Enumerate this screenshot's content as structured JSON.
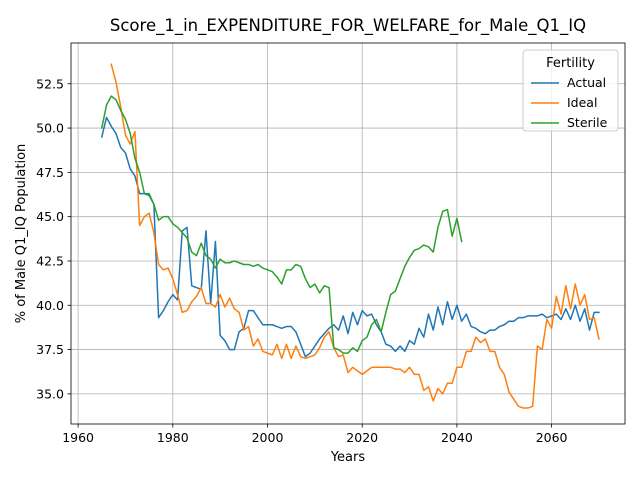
{
  "chart_data": {
    "type": "line",
    "title": "Score_1_in_EXPENDITURE_FOR_WELFARE_for_Male_Q1_IQ",
    "xlabel": "Years",
    "ylabel": "% of Male Q1_IQ Population",
    "xlim": [
      1958.5,
      2075.5
    ],
    "ylim": [
      33.3,
      54.8
    ],
    "xticks": [
      1960,
      1980,
      2000,
      2020,
      2040,
      2060
    ],
    "xtick_labels": [
      "1960",
      "1980",
      "2000",
      "2020",
      "2040",
      "2060"
    ],
    "yticks": [
      35.0,
      37.5,
      40.0,
      42.5,
      45.0,
      47.5,
      50.0,
      52.5
    ],
    "ytick_labels": [
      "35.0",
      "37.5",
      "40.0",
      "42.5",
      "45.0",
      "47.5",
      "50.0",
      "52.5"
    ],
    "grid": true,
    "legend": {
      "title": "Fertility",
      "position": "top-right"
    },
    "series": [
      {
        "name": "Actual",
        "color": "#1f77b4",
        "x": [
          1965,
          1966,
          1967,
          1968,
          1969,
          1970,
          1971,
          1972,
          1973,
          1974,
          1975,
          1976,
          1977,
          1978,
          1979,
          1980,
          1981,
          1982,
          1983,
          1984,
          1985,
          1986,
          1987,
          1988,
          1989,
          1990,
          1991,
          1992,
          1993,
          1994,
          1995,
          1996,
          1997,
          1998,
          1999,
          2000,
          2001,
          2002,
          2003,
          2004,
          2005,
          2006,
          2007,
          2008,
          2009,
          2010,
          2011,
          2012,
          2013,
          2014,
          2015,
          2016,
          2017,
          2018,
          2019,
          2020,
          2021,
          2022,
          2023,
          2024,
          2025,
          2026,
          2027,
          2028,
          2029,
          2030,
          2031,
          2032,
          2033,
          2034,
          2035,
          2036,
          2037,
          2038,
          2039,
          2040,
          2041,
          2042,
          2043,
          2044,
          2045,
          2046,
          2047,
          2048,
          2049,
          2050,
          2051,
          2052,
          2053,
          2054,
          2055,
          2056,
          2057,
          2058,
          2059,
          2060,
          2061,
          2062,
          2063,
          2064,
          2065,
          2066,
          2067,
          2068,
          2069,
          2070
        ],
        "values": [
          49.5,
          50.6,
          50.1,
          49.7,
          48.9,
          48.6,
          47.7,
          47.3,
          46.3,
          46.3,
          46.2,
          45.7,
          39.3,
          39.7,
          40.2,
          40.6,
          40.3,
          44.2,
          44.4,
          41.1,
          41.0,
          40.9,
          44.2,
          40.1,
          43.6,
          38.3,
          38.0,
          37.5,
          37.5,
          38.5,
          38.7,
          39.7,
          39.7,
          39.3,
          38.9,
          38.9,
          38.9,
          38.8,
          38.7,
          38.8,
          38.8,
          38.5,
          37.8,
          37.1,
          37.3,
          37.7,
          38.1,
          38.4,
          38.7,
          38.9,
          38.6,
          39.4,
          38.4,
          39.6,
          38.9,
          39.7,
          39.4,
          39.5,
          38.9,
          38.5,
          37.8,
          37.7,
          37.4,
          37.7,
          37.4,
          38.0,
          37.8,
          38.7,
          38.2,
          39.5,
          38.6,
          39.9,
          38.9,
          40.2,
          39.2,
          40.0,
          39.1,
          39.5,
          38.8,
          38.7,
          38.5,
          38.4,
          38.6,
          38.6,
          38.8,
          38.9,
          39.1,
          39.1,
          39.3,
          39.3,
          39.4,
          39.4,
          39.4,
          39.5,
          39.3,
          39.4,
          39.5,
          39.2,
          39.8,
          39.2,
          40.0,
          39.1,
          39.8,
          38.6,
          39.6,
          39.6
        ]
      },
      {
        "name": "Ideal",
        "color": "#ff7f0e",
        "x": [
          1967,
          1968,
          1969,
          1970,
          1971,
          1972,
          1973,
          1974,
          1975,
          1976,
          1977,
          1978,
          1979,
          1980,
          1981,
          1982,
          1983,
          1984,
          1985,
          1986,
          1987,
          1988,
          1989,
          1990,
          1991,
          1992,
          1993,
          1994,
          1995,
          1996,
          1997,
          1998,
          1999,
          2000,
          2001,
          2002,
          2003,
          2004,
          2005,
          2006,
          2007,
          2008,
          2009,
          2010,
          2011,
          2012,
          2013,
          2014,
          2015,
          2016,
          2017,
          2018,
          2019,
          2020,
          2021,
          2022,
          2023,
          2024,
          2025,
          2026,
          2027,
          2028,
          2029,
          2030,
          2031,
          2032,
          2033,
          2034,
          2035,
          2036,
          2037,
          2038,
          2039,
          2040,
          2041,
          2042,
          2043,
          2044,
          2045,
          2046,
          2047,
          2048,
          2049,
          2050,
          2051,
          2052,
          2053,
          2054,
          2055,
          2056,
          2057,
          2058,
          2059,
          2060,
          2061,
          2062,
          2063,
          2064,
          2065,
          2066,
          2067,
          2068,
          2069,
          2070
        ],
        "values": [
          53.6,
          52.6,
          51.2,
          49.6,
          49.1,
          49.8,
          44.5,
          45.0,
          45.2,
          44.1,
          42.3,
          42.0,
          42.1,
          41.5,
          40.6,
          39.6,
          39.7,
          40.2,
          40.5,
          41.0,
          40.1,
          40.1,
          39.9,
          40.6,
          39.9,
          40.4,
          39.8,
          39.6,
          38.6,
          38.8,
          37.7,
          38.1,
          37.4,
          37.3,
          37.2,
          37.8,
          37.0,
          37.8,
          37.0,
          37.7,
          37.1,
          37.0,
          37.1,
          37.2,
          37.6,
          38.2,
          38.5,
          37.6,
          37.1,
          37.2,
          36.2,
          36.5,
          36.3,
          36.1,
          36.3,
          36.5,
          36.5,
          36.5,
          36.5,
          36.5,
          36.4,
          36.4,
          36.2,
          36.5,
          36.1,
          36.1,
          35.2,
          35.4,
          34.6,
          35.3,
          35.0,
          35.6,
          35.6,
          36.5,
          36.5,
          37.4,
          37.4,
          38.2,
          37.9,
          38.1,
          37.4,
          37.4,
          36.5,
          36.1,
          35.1,
          34.7,
          34.3,
          34.2,
          34.2,
          34.3,
          37.7,
          37.5,
          39.2,
          38.7,
          40.5,
          39.5,
          41.1,
          39.8,
          41.2,
          40.0,
          40.6,
          39.2,
          39.3,
          38.1
        ]
      },
      {
        "name": "Sterile",
        "color": "#2ca02c",
        "x": [
          1965,
          1966,
          1967,
          1968,
          1969,
          1970,
          1971,
          1972,
          1973,
          1974,
          1975,
          1976,
          1977,
          1978,
          1979,
          1980,
          1981,
          1982,
          1983,
          1984,
          1985,
          1986,
          1987,
          1988,
          1989,
          1990,
          1991,
          1992,
          1993,
          1994,
          1995,
          1996,
          1997,
          1998,
          1999,
          2000,
          2001,
          2002,
          2003,
          2004,
          2005,
          2006,
          2007,
          2008,
          2009,
          2010,
          2011,
          2012,
          2013,
          2014,
          2015,
          2016,
          2017,
          2018,
          2019,
          2020,
          2021,
          2022,
          2023,
          2024,
          2025,
          2026,
          2027,
          2028,
          2029,
          2030,
          2031,
          2032,
          2033,
          2034,
          2035,
          2036,
          2037,
          2038,
          2039,
          2040,
          2041
        ],
        "values": [
          50.0,
          51.3,
          51.8,
          51.6,
          51.0,
          50.5,
          49.7,
          48.3,
          47.5,
          46.3,
          46.3,
          45.7,
          44.8,
          45.0,
          45.0,
          44.6,
          44.4,
          44.1,
          43.8,
          43.0,
          42.8,
          43.5,
          42.8,
          42.6,
          42.1,
          42.6,
          42.4,
          42.4,
          42.5,
          42.4,
          42.3,
          42.3,
          42.2,
          42.3,
          42.1,
          42.0,
          41.9,
          41.6,
          41.2,
          42.0,
          42.0,
          42.3,
          42.2,
          41.5,
          41.0,
          41.2,
          40.7,
          41.1,
          41.0,
          37.6,
          37.5,
          37.3,
          37.3,
          37.6,
          37.4,
          38.0,
          38.2,
          38.9,
          39.2,
          38.5,
          39.6,
          40.6,
          40.8,
          41.5,
          42.2,
          42.7,
          43.1,
          43.2,
          43.4,
          43.3,
          43.0,
          44.4,
          45.3,
          45.4,
          43.9,
          44.9,
          43.6
        ]
      }
    ]
  }
}
